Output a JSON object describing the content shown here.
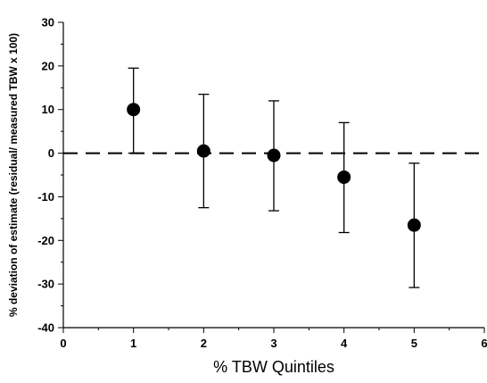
{
  "chart_data": {
    "type": "scatter",
    "title": "",
    "xlabel": "% TBW Quintiles",
    "ylabel": "% deviation of estimate (residual/ measured TBW  x 100)",
    "xlim": [
      0,
      6
    ],
    "ylim": [
      -40,
      30
    ],
    "x_ticks": [
      0,
      1,
      2,
      3,
      4,
      5,
      6
    ],
    "y_ticks": [
      30,
      20,
      10,
      0,
      -10,
      -20,
      -30,
      -40
    ],
    "reference_line": {
      "y": 0,
      "style": "dashed"
    },
    "grid": false,
    "legend": "none",
    "series": [
      {
        "x": [
          1,
          2,
          3,
          4,
          5
        ],
        "y": [
          10,
          0.5,
          -0.5,
          -5.5,
          -16.5
        ],
        "error_low": [
          0,
          -12.5,
          -13.2,
          -18.2,
          -30.8
        ],
        "error_high": [
          19.5,
          13.5,
          12,
          7,
          -2.3
        ]
      }
    ]
  }
}
